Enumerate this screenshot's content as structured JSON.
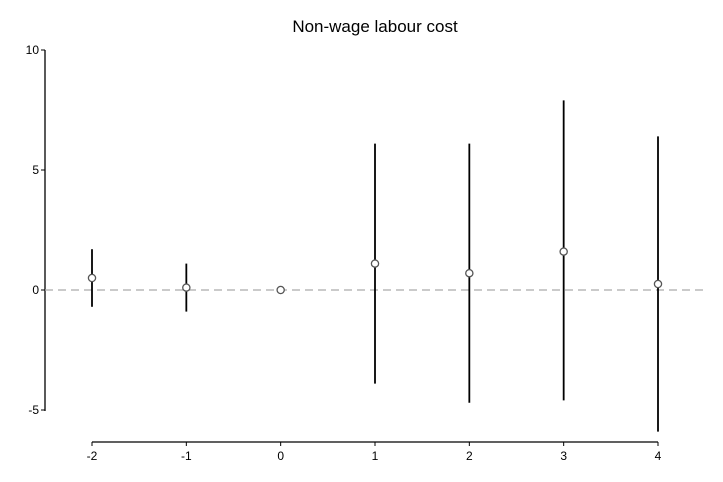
{
  "chart_data": {
    "type": "scatter",
    "title": "Non-wage labour cost",
    "xlabel": "",
    "ylabel": "",
    "x_ticks": [
      "-2",
      "-1",
      "0",
      "1",
      "2",
      "3",
      "4"
    ],
    "y_ticks": [
      "10",
      "5",
      "0",
      "-5"
    ],
    "xlim": [
      -2,
      4
    ],
    "ylim": [
      -5,
      10
    ],
    "grid": false,
    "reference_line": {
      "y": 0,
      "style": "dashed",
      "color": "#aaaaaa"
    },
    "series": [
      {
        "points": [
          {
            "x": -2,
            "y": 0.5,
            "ci_low": -0.7,
            "ci_high": 1.7
          },
          {
            "x": -1,
            "y": 0.1,
            "ci_low": -0.9,
            "ci_high": 1.1
          },
          {
            "x": 0,
            "y": 0.0,
            "ci_low": 0.0,
            "ci_high": 0.0
          },
          {
            "x": 1,
            "y": 1.1,
            "ci_low": -3.9,
            "ci_high": 6.1
          },
          {
            "x": 2,
            "y": 0.7,
            "ci_low": -4.7,
            "ci_high": 6.1
          },
          {
            "x": 3,
            "y": 1.6,
            "ci_low": -4.6,
            "ci_high": 7.9
          },
          {
            "x": 4,
            "y": 0.25,
            "ci_low": -5.9,
            "ci_high": 6.4
          }
        ]
      }
    ],
    "colors": {
      "marker": "#555555",
      "ci_line": "#000000",
      "axis": "#000000",
      "reference": "#aaaaaa"
    }
  }
}
